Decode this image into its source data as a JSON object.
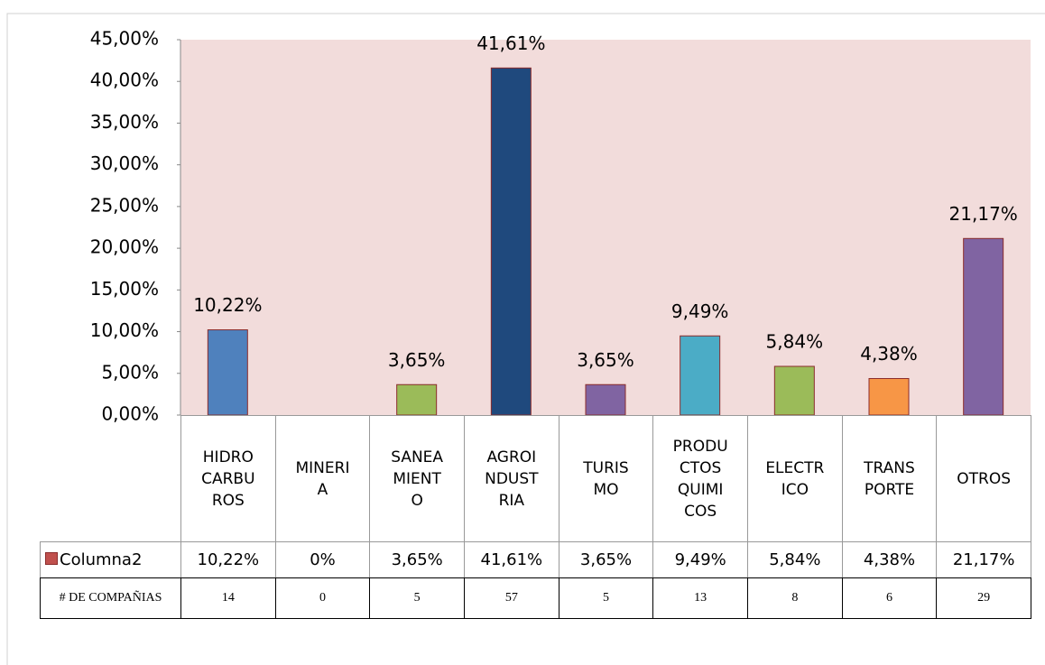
{
  "chart_data": {
    "type": "bar",
    "categories": [
      "HIDRO\nCARBU\nROS",
      "MINERI\nA",
      "SANEA\nMIENT\nO",
      "AGROI\nNDUST\nRIA",
      "TURIS\nMO",
      "PRODU\nCTOS\nQUIMI\nCOS",
      "ELECTR\nICO",
      "TRANS\nPORTE",
      "OTROS"
    ],
    "series": [
      {
        "name": "Columna2",
        "color": "#c0504d",
        "bar_colors": [
          "#4f81bd",
          "#4f81bd",
          "#9bbb59",
          "#1f497d",
          "#8064a2",
          "#4bacc6",
          "#9bbb59",
          "#f79646",
          "#8064a2"
        ],
        "values": [
          10.22,
          0,
          3.65,
          41.61,
          3.65,
          9.49,
          5.84,
          4.38,
          21.17
        ],
        "value_labels": [
          "10,22%",
          "0%",
          "3,65%",
          "41,61%",
          "3,65%",
          "9,49%",
          "5,84%",
          "4,38%",
          "21,17%"
        ]
      }
    ],
    "companies": {
      "label": "# DE COMPAÑIAS",
      "values": [
        14,
        0,
        5,
        57,
        5,
        13,
        8,
        6,
        29
      ]
    },
    "ylim": [
      0,
      45
    ],
    "yticks": [
      {
        "value": 0,
        "label": "0,00%"
      },
      {
        "value": 5,
        "label": "5,00%"
      },
      {
        "value": 10,
        "label": "10,00%"
      },
      {
        "value": 15,
        "label": "15,00%"
      },
      {
        "value": 20,
        "label": "20,00%"
      },
      {
        "value": 25,
        "label": "25,00%"
      },
      {
        "value": 30,
        "label": "30,00%"
      },
      {
        "value": 35,
        "label": "35,00%"
      },
      {
        "value": 40,
        "label": "40,00%"
      },
      {
        "value": 45,
        "label": "45,00%"
      }
    ],
    "plot_background": "#f2dcdb"
  }
}
